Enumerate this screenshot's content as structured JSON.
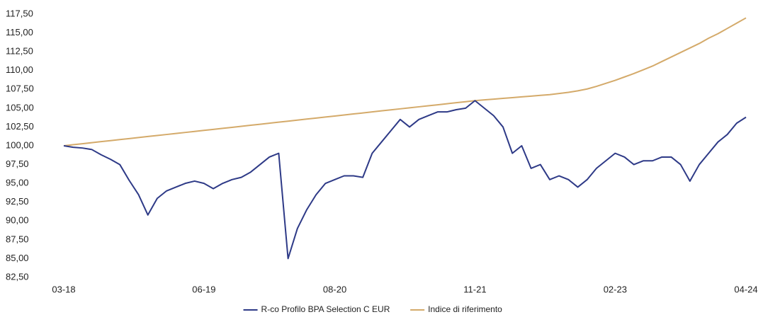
{
  "chart_data": {
    "type": "line",
    "categories": [
      "03-18",
      null,
      null,
      null,
      null,
      null,
      null,
      null,
      null,
      null,
      null,
      null,
      null,
      null,
      null,
      "06-19",
      null,
      null,
      null,
      null,
      null,
      null,
      null,
      null,
      null,
      null,
      null,
      null,
      null,
      "08-20",
      null,
      null,
      null,
      null,
      null,
      null,
      null,
      null,
      null,
      null,
      null,
      null,
      null,
      null,
      "11-21",
      null,
      null,
      null,
      null,
      null,
      null,
      null,
      null,
      null,
      null,
      null,
      null,
      null,
      null,
      "02-23",
      null,
      null,
      null,
      null,
      null,
      null,
      null,
      null,
      null,
      null,
      null,
      null,
      null,
      "04-24"
    ],
    "series": [
      {
        "name": "R-co Profilo BPA Selection C EUR",
        "color": "#2e3a87",
        "values": [
          100,
          99.8,
          99.7,
          99.5,
          98.8,
          98.2,
          97.5,
          95.4,
          93.5,
          90.8,
          93,
          94,
          94.5,
          95,
          95.3,
          95,
          94.3,
          95,
          95.5,
          95.8,
          96.5,
          97.5,
          98.5,
          99,
          85,
          89,
          91.5,
          93.5,
          95,
          95.5,
          96,
          96,
          95.8,
          99,
          100.5,
          102,
          103.5,
          102.5,
          103.5,
          104,
          104.5,
          104.5,
          104.8,
          105,
          106,
          105,
          104,
          102.5,
          99,
          100,
          97,
          97.5,
          95.5,
          96,
          95.5,
          94.5,
          95.5,
          97,
          98,
          99,
          98.5,
          97.5,
          98,
          98,
          98.5,
          98.5,
          97.5,
          95.3,
          97.5,
          99,
          100.5,
          101.5,
          103,
          103.8
        ]
      },
      {
        "name": "Indice di riferimento",
        "color": "#d4aa6a",
        "values": [
          100,
          100.14,
          100.27,
          100.41,
          100.55,
          100.68,
          100.82,
          100.95,
          101.09,
          101.23,
          101.36,
          101.5,
          101.64,
          101.77,
          101.91,
          102.05,
          102.18,
          102.32,
          102.45,
          102.59,
          102.73,
          102.86,
          103,
          103.14,
          103.27,
          103.41,
          103.55,
          103.68,
          103.82,
          103.95,
          104.09,
          104.23,
          104.36,
          104.5,
          104.64,
          104.77,
          104.91,
          105.05,
          105.18,
          105.32,
          105.45,
          105.59,
          105.73,
          105.86,
          106,
          106.1,
          106.2,
          106.3,
          106.4,
          106.5,
          106.6,
          106.7,
          106.8,
          106.95,
          107.1,
          107.3,
          107.55,
          107.9,
          108.3,
          108.7,
          109.15,
          109.6,
          110.1,
          110.6,
          111.2,
          111.8,
          112.4,
          113,
          113.6,
          114.3,
          114.9,
          115.6,
          116.3,
          117
        ]
      }
    ],
    "ylim": [
      82.5,
      117.5
    ],
    "yticks": [
      {
        "value": 82.5,
        "label": "82,50"
      },
      {
        "value": 85,
        "label": "85,00"
      },
      {
        "value": 87.5,
        "label": "87,50"
      },
      {
        "value": 90,
        "label": "90,00"
      },
      {
        "value": 92.5,
        "label": "92,50"
      },
      {
        "value": 95,
        "label": "95,00"
      },
      {
        "value": 97.5,
        "label": "97,50"
      },
      {
        "value": 100,
        "label": "100,00"
      },
      {
        "value": 102.5,
        "label": "102,50"
      },
      {
        "value": 105,
        "label": "105,00"
      },
      {
        "value": 107.5,
        "label": "107,50"
      },
      {
        "value": 110,
        "label": "110,00"
      },
      {
        "value": 112.5,
        "label": "112,50"
      },
      {
        "value": 115,
        "label": "115,00"
      },
      {
        "value": 117.5,
        "label": "117,50"
      }
    ],
    "grid": false,
    "legend": "bottom"
  }
}
